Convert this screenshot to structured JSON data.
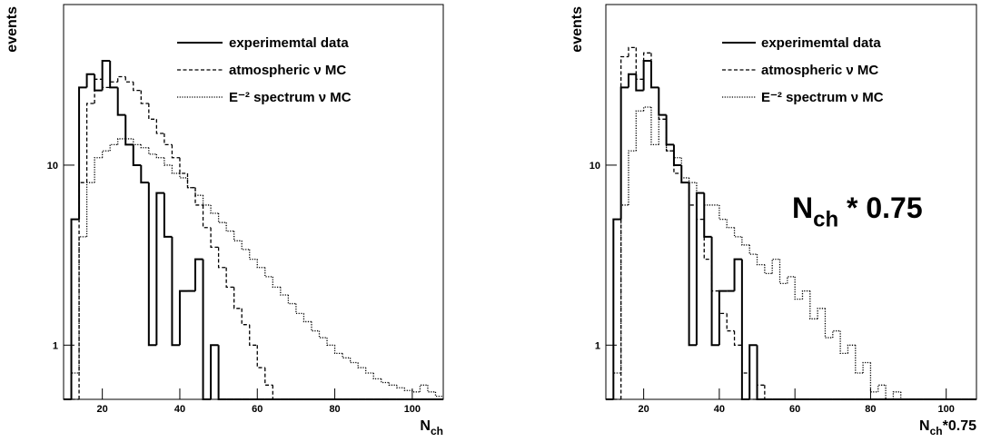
{
  "chart_data": [
    {
      "type": "histogram",
      "y_label": "events",
      "x_label_parts": [
        "N",
        "ch"
      ],
      "log_y": true,
      "xlim": [
        10,
        108
      ],
      "ylim": [
        0.5,
        78
      ],
      "xticks": [
        20,
        40,
        60,
        80,
        100
      ],
      "yticks": [
        1,
        10
      ],
      "bins": [
        10,
        12,
        14,
        16,
        18,
        20,
        22,
        24,
        26,
        28,
        30,
        32,
        34,
        36,
        38,
        40,
        42,
        44,
        46,
        48,
        50,
        52,
        54,
        56,
        58,
        60,
        62,
        64,
        66,
        68,
        70,
        72,
        74,
        76,
        78,
        80,
        82,
        84,
        86,
        88,
        90,
        92,
        94,
        96,
        98,
        100,
        102,
        104,
        106,
        108
      ],
      "series": [
        {
          "name": "experimemtal data",
          "color": "#000000",
          "style": "solid",
          "values": [
            0,
            5,
            27,
            32,
            26,
            38,
            27,
            19,
            13,
            10,
            8,
            1,
            7,
            4,
            1,
            2,
            2,
            3,
            0,
            1,
            0,
            0,
            0,
            0,
            0,
            0,
            0,
            0,
            0,
            0,
            0,
            0,
            0,
            0,
            0,
            0,
            0,
            0,
            0,
            0,
            0,
            0,
            0,
            0,
            0,
            0,
            0,
            0,
            0
          ]
        },
        {
          "name": "atmospheric ν MC",
          "color": "#000000",
          "style": "dashed",
          "values": [
            0,
            0,
            8,
            22,
            30,
            27,
            29,
            31,
            29,
            26,
            22,
            18,
            15,
            13,
            11,
            9,
            7.5,
            6,
            4.5,
            3.5,
            2.7,
            2.1,
            1.6,
            1.3,
            1,
            0.75,
            0.6,
            0.5,
            0,
            0,
            0,
            0,
            0,
            0,
            0,
            0,
            0,
            0,
            0,
            0,
            0,
            0,
            0,
            0,
            0,
            0,
            0,
            0,
            0
          ]
        },
        {
          "name": "E⁻² spectrum ν MC",
          "color": "#000000",
          "style": "dotted",
          "values": [
            0,
            0.7,
            4,
            8,
            11,
            12,
            13,
            14,
            14,
            13,
            12.5,
            11.5,
            11,
            10,
            9,
            8.5,
            7.5,
            6.8,
            6,
            5.4,
            4.8,
            4.3,
            3.8,
            3.4,
            3,
            2.7,
            2.4,
            2.1,
            1.9,
            1.7,
            1.5,
            1.35,
            1.2,
            1.1,
            1,
            0.9,
            0.85,
            0.8,
            0.75,
            0.7,
            0.65,
            0.62,
            0.6,
            0.58,
            0.56,
            0.55,
            0.6,
            0.55,
            0.52
          ]
        }
      ]
    },
    {
      "type": "histogram",
      "y_label": "events",
      "x_label_parts": [
        "N",
        "ch",
        "*0.75"
      ],
      "annotation_parts": [
        "N",
        "ch",
        " * 0.75"
      ],
      "log_y": true,
      "xlim": [
        10,
        108
      ],
      "ylim": [
        0.5,
        78
      ],
      "xticks": [
        20,
        40,
        60,
        80,
        100
      ],
      "yticks": [
        1,
        10
      ],
      "bins": [
        10,
        12,
        14,
        16,
        18,
        20,
        22,
        24,
        26,
        28,
        30,
        32,
        34,
        36,
        38,
        40,
        42,
        44,
        46,
        48,
        50,
        52,
        54,
        56,
        58,
        60,
        62,
        64,
        66,
        68,
        70,
        72,
        74,
        76,
        78,
        80,
        82,
        84,
        86,
        88,
        90,
        92,
        94,
        96,
        98,
        100,
        102,
        104,
        106,
        108
      ],
      "series": [
        {
          "name": "experimemtal data",
          "color": "#000000",
          "style": "solid",
          "values": [
            0,
            5,
            27,
            32,
            26,
            38,
            27,
            19,
            13,
            10,
            8,
            1,
            7,
            4,
            1,
            2,
            2,
            3,
            0,
            1,
            0,
            0,
            0,
            0,
            0,
            0,
            0,
            0,
            0,
            0,
            0,
            0,
            0,
            0,
            0,
            0,
            0,
            0,
            0,
            0,
            0,
            0,
            0,
            0,
            0,
            0,
            0,
            0,
            0
          ]
        },
        {
          "name": "atmospheric ν MC",
          "color": "#000000",
          "style": "dashed",
          "values": [
            0,
            0,
            40,
            45,
            30,
            42,
            27,
            18,
            12,
            9,
            8,
            6,
            5,
            3,
            2,
            1.5,
            1.2,
            1,
            0.7,
            0.5,
            0.6,
            0,
            0,
            0,
            0,
            0,
            0,
            0,
            0,
            0,
            0,
            0,
            0,
            0,
            0,
            0,
            0,
            0,
            0,
            0,
            0,
            0,
            0,
            0,
            0,
            0,
            0,
            0,
            0
          ]
        },
        {
          "name": "E⁻² spectrum ν MC",
          "color": "#000000",
          "style": "dotted",
          "values": [
            0,
            0.7,
            6,
            12,
            20,
            21,
            13,
            19,
            12,
            11,
            8.5,
            8,
            7,
            6,
            6,
            5,
            4.5,
            4,
            3.6,
            3.2,
            2.8,
            2.5,
            3,
            2.2,
            2.4,
            1.8,
            2,
            1.4,
            1.6,
            1.1,
            1.2,
            0.9,
            1,
            0.7,
            0.8,
            0.55,
            0.6,
            0.5,
            0.55,
            0,
            0,
            0,
            0,
            0,
            0,
            0,
            0,
            0,
            0
          ]
        }
      ]
    }
  ]
}
